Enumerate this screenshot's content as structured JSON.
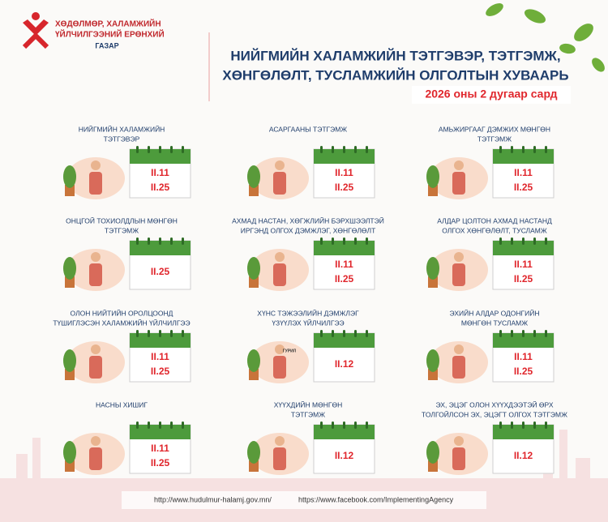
{
  "header": {
    "logo_lines": [
      "ХӨДӨЛМӨР, ХАЛАМЖИЙН",
      "ҮЙЛЧИЛГЭЭНИЙ ЕРӨНХИЙ",
      "ГАЗАР"
    ],
    "title_lines": [
      "НИЙГМИЙН ХАЛАМЖИЙН ТЭТГЭВЭР, ТЭТГЭМЖ,",
      "ХӨНГӨЛӨЛТ, ТУСЛАМЖИЙН ОЛГОЛТЫН ХУВААРЬ"
    ],
    "subtitle": "2026 оны 2 дугаар сард"
  },
  "items": [
    {
      "label_lines": [
        "НИЙГМИЙН ХАЛАМЖИЙН",
        "ТЭТГЭВЭР"
      ],
      "dates": [
        "II.11",
        "II.25"
      ]
    },
    {
      "label_lines": [
        "АСАРГААНЫ ТЭТГЭМЖ"
      ],
      "dates": [
        "II.11",
        "II.25"
      ]
    },
    {
      "label_lines": [
        "АМЬЖИРГААГ ДЭМЖИХ МӨНГӨН",
        "ТЭТГЭМЖ"
      ],
      "dates": [
        "II.11",
        "II.25"
      ]
    },
    {
      "label_lines": [
        "ОНЦГОЙ ТОХИОЛДЛЫН МӨНГӨН",
        "ТЭТГЭМЖ"
      ],
      "dates": [
        "II.25"
      ]
    },
    {
      "label_lines": [
        "АХМАД НАСТАН, ХӨГЖЛИЙН БЭРХШЭЭЛТЭЙ",
        "ИРГЭНД ОЛГОХ ДЭМЖЛЭГ, ХӨНГӨЛӨЛТ"
      ],
      "dates": [
        "II.11",
        "II.25"
      ]
    },
    {
      "label_lines": [
        "АЛДАР ЦОЛТОН АХМАД НАСТАНД",
        "ОЛГОХ ХӨНГӨЛӨЛТ, ТУСЛАМЖ"
      ],
      "dates": [
        "II.11",
        "II.25"
      ]
    },
    {
      "label_lines": [
        "ОЛОН НИЙТИЙН ОРОЛЦООНД",
        "ТҮШИГЛЭСЭН ХАЛАМЖИЙН ҮЙЛЧИЛГЭЭ"
      ],
      "dates": [
        "II.11",
        "II.25"
      ]
    },
    {
      "label_lines": [
        "ХҮНС ТЭЖЭЭЛИЙН ДЭМЖЛЭГ",
        "ҮЗҮҮЛЭХ ҮЙЛЧИЛГЭЭ"
      ],
      "dates": [
        "II.12"
      ],
      "illustration_text": "ГУРИЛ"
    },
    {
      "label_lines": [
        "ЭХИЙН АЛДАР ОДОНГИЙН",
        "МӨНГӨН ТУСЛАМЖ"
      ],
      "dates": [
        "II.11",
        "II.25"
      ]
    },
    {
      "label_lines": [
        "НАСНЫ ХИШИГ"
      ],
      "dates": [
        "II.11",
        "II.25"
      ]
    },
    {
      "label_lines": [
        "ХҮҮХДИЙН МӨНГӨН",
        "ТЭТГЭМЖ"
      ],
      "dates": [
        "II.12"
      ]
    },
    {
      "label_lines": [
        "ЭХ, ЭЦЭГ ОЛОН ХҮҮХДЭЭТЭЙ ӨРХ",
        "ТОЛГОЙЛСОН ЭХ, ЭЦЭГТ ОЛГОХ ТЭТГЭМЖ"
      ],
      "dates": [
        "II.12"
      ]
    }
  ],
  "footer": {
    "website": "http://www.hudulmur-halamj.gov.mn/",
    "facebook": "https://www.facebook.com/ImplementingAgency"
  }
}
